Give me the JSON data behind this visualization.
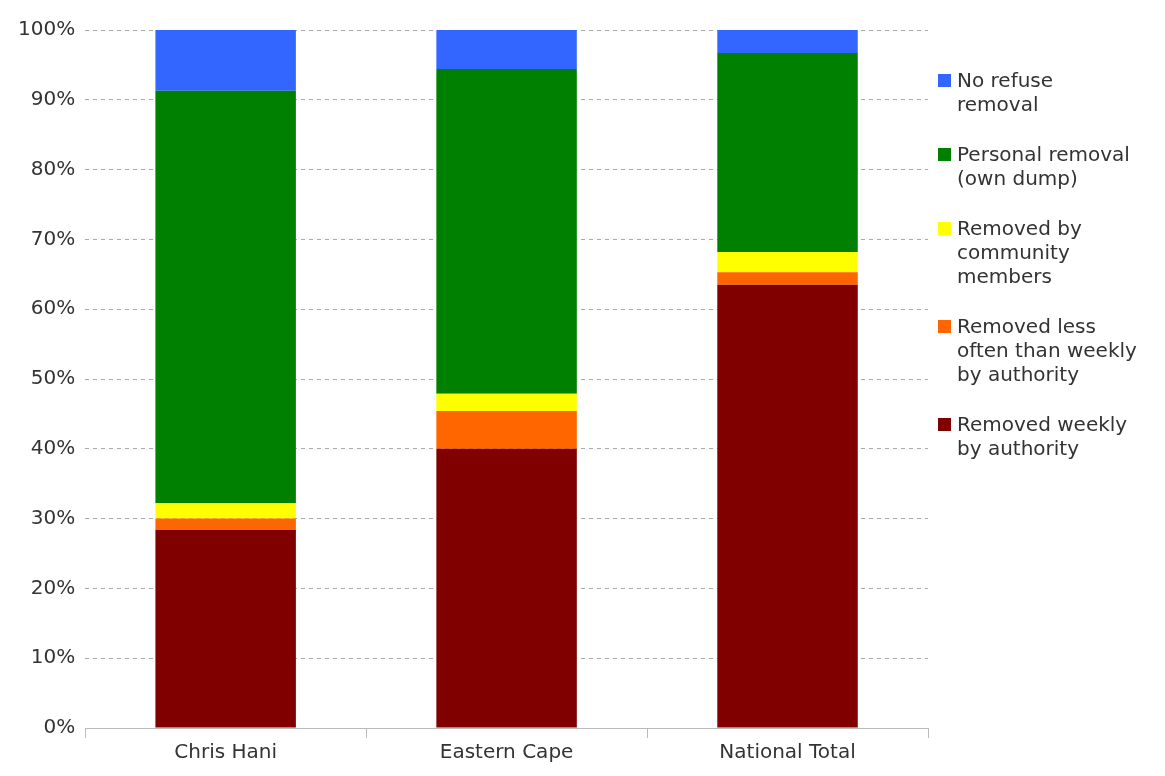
{
  "chart_data": {
    "type": "bar",
    "stacked": true,
    "categories": [
      "Chris Hani",
      "Eastern Cape",
      "National Total"
    ],
    "series": [
      {
        "name": "Removed weekly by authority",
        "color": "#800000",
        "values": [
          28.4,
          40.0,
          63.5
        ]
      },
      {
        "name": "Removed less often than weekly by authority",
        "color": "#ff6600",
        "values": [
          1.6,
          5.4,
          1.8
        ]
      },
      {
        "name": "Removed by community members",
        "color": "#ffff00",
        "values": [
          2.2,
          2.5,
          2.9
        ]
      },
      {
        "name": "Personal removal (own dump)",
        "color": "#008000",
        "values": [
          59.1,
          46.5,
          28.5
        ]
      },
      {
        "name": "No refuse removal",
        "color": "#3366ff",
        "values": [
          8.7,
          5.6,
          3.3
        ]
      }
    ],
    "ylim": [
      0,
      100
    ],
    "yticks": [
      {
        "value": 0,
        "label": "0%"
      },
      {
        "value": 10,
        "label": "10%"
      },
      {
        "value": 20,
        "label": "20%"
      },
      {
        "value": 30,
        "label": "30%"
      },
      {
        "value": 40,
        "label": "40%"
      },
      {
        "value": 50,
        "label": "50%"
      },
      {
        "value": 60,
        "label": "60%"
      },
      {
        "value": 70,
        "label": "70%"
      },
      {
        "value": 80,
        "label": "80%"
      },
      {
        "value": 90,
        "label": "90%"
      },
      {
        "value": 100,
        "label": "100%"
      }
    ],
    "grid": "y",
    "legend": "right"
  }
}
